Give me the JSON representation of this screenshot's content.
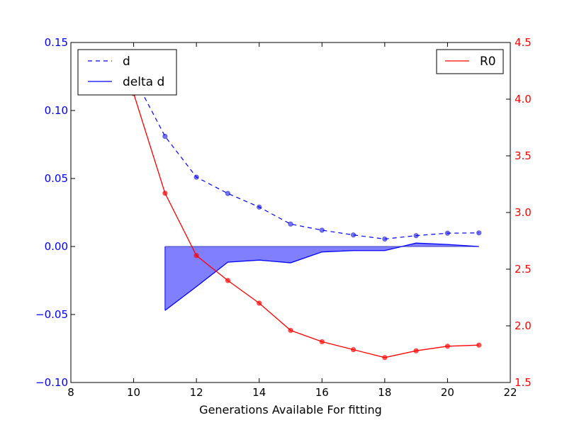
{
  "chart_data": {
    "type": "line",
    "title": "",
    "xlabel": "Generations Available For fitting",
    "ylabel_left": "",
    "ylabel_right": "",
    "xlim": [
      8,
      22
    ],
    "xticks": [
      "8",
      "10",
      "12",
      "14",
      "16",
      "18",
      "20",
      "22"
    ],
    "ylim_left": [
      -0.1,
      0.15
    ],
    "yticks_left": [
      "0.15",
      "0.10",
      "0.05",
      "0.00",
      "−0.05",
      "−0.10"
    ],
    "ylim_right": [
      1.5,
      4.5
    ],
    "yticks_right": [
      "4.5",
      "4.0",
      "3.5",
      "3.0",
      "2.5",
      "2.0",
      "1.5"
    ],
    "grid": false,
    "colors": {
      "left_axis": "#0000ff",
      "right_axis": "#ff0000",
      "d": "#0000ff",
      "delta_fill": "#8080ff",
      "r0": "#ff0000"
    },
    "legend_left": {
      "placement": "upper-left",
      "entries": [
        "d",
        "delta d"
      ]
    },
    "legend_right": {
      "placement": "upper-right",
      "entries": [
        "R0"
      ]
    },
    "series": [
      {
        "name": "d",
        "axis": "left",
        "style": "dashed",
        "x": [
          10,
          11,
          12,
          13,
          14,
          15,
          16,
          17,
          18,
          19,
          20,
          21
        ],
        "values": [
          0.125,
          0.081,
          0.051,
          0.039,
          0.029,
          0.0165,
          0.012,
          0.0085,
          0.0055,
          0.008,
          0.0098,
          0.01
        ]
      },
      {
        "name": "delta d",
        "axis": "left",
        "style": "filled",
        "x": [
          11,
          12,
          13,
          14,
          15,
          16,
          17,
          18,
          19,
          20,
          21
        ],
        "values": [
          -0.047,
          -0.0295,
          -0.0115,
          -0.01,
          -0.012,
          -0.004,
          -0.003,
          -0.003,
          0.0025,
          0.0015,
          0.0
        ]
      },
      {
        "name": "R0",
        "axis": "right",
        "style": "solid",
        "x": [
          10,
          11,
          12,
          13,
          14,
          15,
          16,
          17,
          18,
          19,
          20,
          21
        ],
        "values": [
          4.05,
          3.17,
          2.62,
          2.4,
          2.2,
          1.96,
          1.86,
          1.79,
          1.72,
          1.78,
          1.82,
          1.83
        ]
      }
    ]
  }
}
